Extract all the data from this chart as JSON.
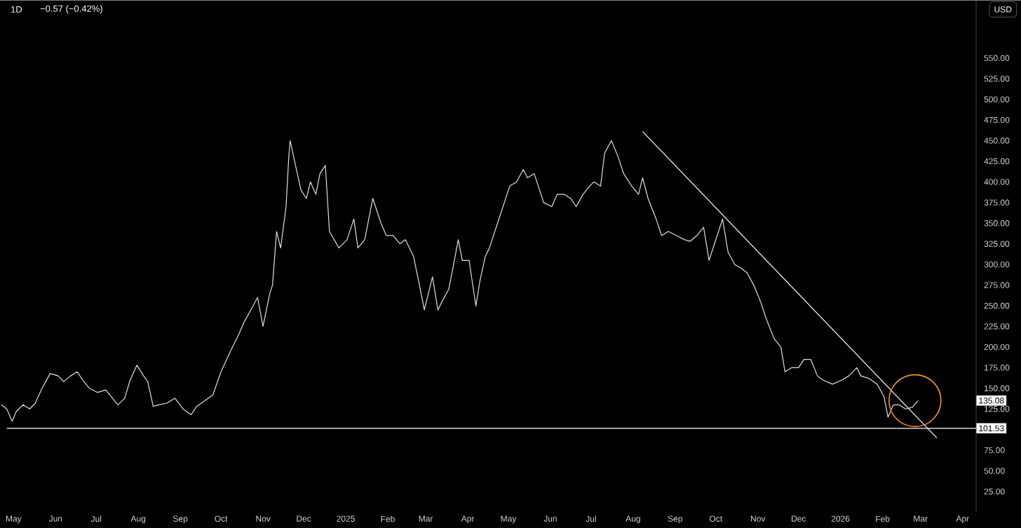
{
  "chart_data": {
    "type": "line",
    "title": "1D",
    "subtitle": "−0.57 (−0.42%)",
    "xlim": [
      "2024-04-21",
      "2026-04-11"
    ],
    "xticks": [
      {
        "value": "2024-05-01",
        "label": "May"
      },
      {
        "value": "2024-06-01",
        "label": "Jun"
      },
      {
        "value": "2024-07-01",
        "label": "Jul"
      },
      {
        "value": "2024-08-01",
        "label": "Aug"
      },
      {
        "value": "2024-09-01",
        "label": "Sep"
      },
      {
        "value": "2024-10-01",
        "label": "Oct"
      },
      {
        "value": "2024-11-01",
        "label": "Nov"
      },
      {
        "value": "2024-12-01",
        "label": "Dec"
      },
      {
        "value": "2025-01-01",
        "label": "2025"
      },
      {
        "value": "2025-02-01",
        "label": "Feb"
      },
      {
        "value": "2025-03-01",
        "label": "Mar"
      },
      {
        "value": "2025-04-01",
        "label": "Apr"
      },
      {
        "value": "2025-05-01",
        "label": "May"
      },
      {
        "value": "2025-06-01",
        "label": "Jun"
      },
      {
        "value": "2025-07-01",
        "label": "Jul"
      },
      {
        "value": "2025-08-01",
        "label": "Aug"
      },
      {
        "value": "2025-09-01",
        "label": "Sep"
      },
      {
        "value": "2025-10-01",
        "label": "Oct"
      },
      {
        "value": "2025-11-01",
        "label": "Nov"
      },
      {
        "value": "2025-12-01",
        "label": "Dec"
      },
      {
        "value": "2026-01-01",
        "label": "2026"
      },
      {
        "value": "2026-02-01",
        "label": "Feb"
      },
      {
        "value": "2026-03-01",
        "label": "Mar"
      },
      {
        "value": "2026-04-01",
        "label": "Apr"
      }
    ],
    "ylim": [
      0,
      620
    ],
    "yticks": [
      {
        "value": 25,
        "label": "25.00"
      },
      {
        "value": 50,
        "label": "50.00"
      },
      {
        "value": 75,
        "label": "75.00"
      },
      {
        "value": 125,
        "label": "125.00"
      },
      {
        "value": 150,
        "label": "150.00"
      },
      {
        "value": 175,
        "label": "175.00"
      },
      {
        "value": 200,
        "label": "200.00"
      },
      {
        "value": 225,
        "label": "225.00"
      },
      {
        "value": 250,
        "label": "250.00"
      },
      {
        "value": 275,
        "label": "275.00"
      },
      {
        "value": 300,
        "label": "300.00"
      },
      {
        "value": 325,
        "label": "325.00"
      },
      {
        "value": 350,
        "label": "350.00"
      },
      {
        "value": 375,
        "label": "375.00"
      },
      {
        "value": 400,
        "label": "400.00"
      },
      {
        "value": 425,
        "label": "425.00"
      },
      {
        "value": 450,
        "label": "450.00"
      },
      {
        "value": 475,
        "label": "475.00"
      },
      {
        "value": 500,
        "label": "500.00"
      },
      {
        "value": 525,
        "label": "525.00"
      },
      {
        "value": 550,
        "label": "550.00"
      }
    ],
    "grid": false,
    "legend": false,
    "marker": "none",
    "line_style": "solid",
    "series": [
      {
        "color": "#e0e0e0",
        "x": [
          "2024-04-22",
          "2024-04-26",
          "2024-04-30",
          "2024-05-03",
          "2024-05-08",
          "2024-05-13",
          "2024-05-17",
          "2024-05-22",
          "2024-05-28",
          "2024-06-03",
          "2024-06-07",
          "2024-06-12",
          "2024-06-17",
          "2024-06-21",
          "2024-06-26",
          "2024-07-02",
          "2024-07-08",
          "2024-07-12",
          "2024-07-17",
          "2024-07-22",
          "2024-07-26",
          "2024-07-31",
          "2024-08-05",
          "2024-08-08",
          "2024-08-12",
          "2024-08-16",
          "2024-08-22",
          "2024-08-28",
          "2024-09-03",
          "2024-09-09",
          "2024-09-13",
          "2024-09-19",
          "2024-09-25",
          "2024-10-01",
          "2024-10-08",
          "2024-10-14",
          "2024-10-18",
          "2024-10-23",
          "2024-10-28",
          "2024-11-01",
          "2024-11-06",
          "2024-11-08",
          "2024-11-11",
          "2024-11-14",
          "2024-11-18",
          "2024-11-20",
          "2024-11-21",
          "2024-11-25",
          "2024-11-29",
          "2024-12-03",
          "2024-12-06",
          "2024-12-10",
          "2024-12-13",
          "2024-12-17",
          "2024-12-20",
          "2024-12-27",
          "2025-01-02",
          "2025-01-07",
          "2025-01-10",
          "2025-01-15",
          "2025-01-21",
          "2025-01-27",
          "2025-01-31",
          "2025-02-05",
          "2025-02-10",
          "2025-02-14",
          "2025-02-20",
          "2025-02-25",
          "2025-02-28",
          "2025-03-03",
          "2025-03-06",
          "2025-03-10",
          "2025-03-13",
          "2025-03-18",
          "2025-03-21",
          "2025-03-25",
          "2025-03-28",
          "2025-04-02",
          "2025-04-07",
          "2025-04-10",
          "2025-04-14",
          "2025-04-17",
          "2025-04-23",
          "2025-04-28",
          "2025-05-02",
          "2025-05-07",
          "2025-05-12",
          "2025-05-15",
          "2025-05-20",
          "2025-05-23",
          "2025-05-27",
          "2025-06-02",
          "2025-06-06",
          "2025-06-11",
          "2025-06-16",
          "2025-06-20",
          "2025-06-25",
          "2025-06-30",
          "2025-07-03",
          "2025-07-08",
          "2025-07-11",
          "2025-07-16",
          "2025-07-21",
          "2025-07-25",
          "2025-07-31",
          "2025-08-05",
          "2025-08-08",
          "2025-08-12",
          "2025-08-18",
          "2025-08-22",
          "2025-08-27",
          "2025-09-02",
          "2025-09-08",
          "2025-09-12",
          "2025-09-17",
          "2025-09-22",
          "2025-09-26",
          "2025-09-30",
          "2025-10-06",
          "2025-10-10",
          "2025-10-15",
          "2025-10-20",
          "2025-10-24",
          "2025-10-29",
          "2025-11-03",
          "2025-11-07",
          "2025-11-13",
          "2025-11-18",
          "2025-11-21",
          "2025-11-26",
          "2025-12-01",
          "2025-12-05",
          "2025-12-10",
          "2025-12-15",
          "2025-12-19",
          "2025-12-26",
          "2026-01-02",
          "2026-01-07",
          "2026-01-13",
          "2026-01-16",
          "2026-01-22",
          "2026-01-28",
          "2026-02-02",
          "2026-02-05",
          "2026-02-09",
          "2026-02-13",
          "2026-02-18",
          "2026-02-23",
          "2026-02-27"
        ],
        "values": [
          130,
          125,
          110,
          122,
          130,
          125,
          132,
          150,
          168,
          165,
          158,
          165,
          170,
          160,
          150,
          145,
          148,
          140,
          130,
          138,
          160,
          178,
          165,
          158,
          128,
          130,
          132,
          138,
          125,
          118,
          128,
          135,
          142,
          170,
          195,
          215,
          230,
          245,
          260,
          225,
          265,
          275,
          340,
          320,
          370,
          430,
          450,
          420,
          390,
          380,
          400,
          385,
          410,
          420,
          340,
          320,
          330,
          355,
          320,
          330,
          380,
          350,
          335,
          335,
          325,
          330,
          310,
          270,
          245,
          265,
          285,
          245,
          255,
          270,
          295,
          330,
          305,
          305,
          250,
          280,
          310,
          320,
          350,
          375,
          395,
          400,
          415,
          405,
          410,
          395,
          375,
          370,
          385,
          385,
          380,
          370,
          385,
          395,
          400,
          395,
          435,
          450,
          430,
          410,
          395,
          385,
          405,
          380,
          355,
          335,
          340,
          335,
          330,
          328,
          335,
          345,
          305,
          325,
          355,
          315,
          300,
          295,
          290,
          275,
          255,
          235,
          210,
          200,
          170,
          175,
          175,
          185,
          185,
          165,
          160,
          155,
          160,
          165,
          175,
          165,
          162,
          155,
          140,
          115,
          130,
          130,
          125,
          127,
          135.08
        ]
      },
      {
        "color": "#ffffff",
        "x": [
          "2025-08-08",
          "2026-03-13"
        ],
        "values": [
          461,
          90
        ]
      }
    ],
    "ref_lines": [
      {
        "axis": "y",
        "value": 101.53,
        "label": "101.53",
        "color": "#ffffff",
        "line_style": "solid"
      }
    ],
    "annotations": [
      "135.08",
      "USD"
    ]
  }
}
